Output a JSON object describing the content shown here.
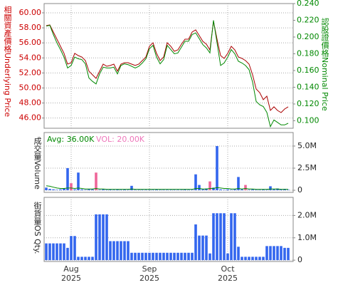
{
  "chart_data": [
    {
      "type": "line",
      "ylabel": "相關資產價格Underlying Price",
      "ylabel_color": "#cc0000",
      "y2label": "認股證價格Nominal Price",
      "y2label_color": "#008800",
      "xlim": [
        0,
        68
      ],
      "ylim": [
        44.64,
        61.23
      ],
      "yticks": [
        {
          "value": 46,
          "label": "46.00"
        },
        {
          "value": 48,
          "label": "48.00"
        },
        {
          "value": 50,
          "label": "50.00"
        },
        {
          "value": 52,
          "label": "52.00"
        },
        {
          "value": 54,
          "label": "54.00"
        },
        {
          "value": 56,
          "label": "56.00"
        },
        {
          "value": 58,
          "label": "58.00"
        },
        {
          "value": 60,
          "label": "60.00"
        }
      ],
      "y2lim": [
        0.091,
        0.24
      ],
      "y2ticks": [
        {
          "value": 0.1,
          "label": "0.100"
        },
        {
          "value": 0.12,
          "label": "0.120"
        },
        {
          "value": 0.14,
          "label": "0.140"
        },
        {
          "value": 0.16,
          "label": "0.160"
        },
        {
          "value": 0.18,
          "label": "0.180"
        },
        {
          "value": 0.2,
          "label": "0.200"
        },
        {
          "value": 0.22,
          "label": "0.220"
        },
        {
          "value": 0.24,
          "label": "0.240"
        }
      ],
      "grid": true,
      "series": [
        {
          "color": "#aa0000",
          "values": [
            58.29,
            58.39,
            57.44,
            56.49,
            55.54,
            54.6,
            53.17,
            53.36,
            54.6,
            54.31,
            54.12,
            53.65,
            52.23,
            51.75,
            51.28,
            52.23,
            53.17,
            52.89,
            52.99,
            53.17,
            52.23,
            53.17,
            53.36,
            53.36,
            53.17,
            52.99,
            53.17,
            53.65,
            54.12,
            55.54,
            56.02,
            54.6,
            53.65,
            54.12,
            56.02,
            55.54,
            54.88,
            55.07,
            55.83,
            56.49,
            56.49,
            57.44,
            57.73,
            56.97,
            56.21,
            55.83,
            55.07,
            58.86,
            56.49,
            54.31,
            53.93,
            54.6,
            55.54,
            55.07,
            54.12,
            53.93,
            53.65,
            53.17,
            51.75,
            49.86,
            49.38,
            48.44,
            48.91,
            47.01,
            47.49,
            47.01,
            46.73,
            47.2,
            47.49
          ]
        },
        {
          "color": "#008800",
          "axis": "y2",
          "values": [
            0.213,
            0.214,
            0.203,
            0.193,
            0.185,
            0.176,
            0.163,
            0.166,
            0.176,
            0.174,
            0.173,
            0.168,
            0.151,
            0.147,
            0.144,
            0.156,
            0.164,
            0.163,
            0.163,
            0.164,
            0.156,
            0.166,
            0.168,
            0.167,
            0.165,
            0.163,
            0.165,
            0.169,
            0.174,
            0.186,
            0.19,
            0.176,
            0.168,
            0.173,
            0.19,
            0.185,
            0.18,
            0.181,
            0.188,
            0.195,
            0.195,
            0.203,
            0.205,
            0.198,
            0.191,
            0.187,
            0.181,
            0.22,
            0.193,
            0.166,
            0.169,
            0.176,
            0.185,
            0.18,
            0.171,
            0.169,
            0.166,
            0.161,
            0.146,
            0.123,
            0.119,
            0.117,
            0.11,
            0.093,
            0.101,
            0.098,
            0.095,
            0.095,
            0.097
          ]
        }
      ]
    },
    {
      "type": "bar",
      "ylabel": "成交量Volume",
      "xlim": [
        0,
        68
      ],
      "ylim": [
        -0.24,
        6.53
      ],
      "yticks": [
        0,
        {
          "value": 2.5,
          "label": "2.5M"
        },
        {
          "value": 5,
          "label": "5.0M"
        }
      ],
      "grid": true,
      "color": "#3366ee",
      "alt_color": "#ee6699",
      "alt_indices": [
        7,
        14,
        46,
        56
      ],
      "values": [
        0.3,
        0.15,
        0.1,
        0.05,
        0.1,
        0.2,
        2.5,
        0.8,
        0.1,
        2.0,
        0.1,
        0.05,
        0.1,
        0.1,
        2.0,
        0.05,
        0.1,
        0.05,
        0.1,
        0.05,
        0.1,
        0.05,
        0.1,
        0.05,
        0.5,
        0.05,
        0.05,
        0.05,
        0.05,
        0.05,
        0.05,
        0.1,
        0.05,
        0.05,
        0.05,
        0.05,
        0.05,
        0.05,
        0.05,
        0.1,
        0.05,
        0.05,
        1.8,
        0.6,
        0.1,
        0.2,
        1.0,
        0.3,
        5.0,
        0.1,
        0.05,
        0.1,
        0.05,
        0.1,
        1.5,
        0.1,
        0.6,
        0.05,
        0.1,
        0.05,
        0.05,
        0.1,
        0.05,
        0.45,
        0.1,
        0.2,
        0.1,
        0.15,
        0.05
      ],
      "line": {
        "color": "#008800",
        "values": [
          0.5,
          0.45,
          0.35,
          0.25,
          0.2,
          0.2,
          0.25,
          0.25,
          0.2,
          0.25,
          0.2,
          0.15,
          0.15,
          0.15,
          0.2,
          0.15,
          0.15,
          0.1,
          0.1,
          0.1,
          0.1,
          0.1,
          0.1,
          0.1,
          0.15,
          0.1,
          0.1,
          0.1,
          0.1,
          0.1,
          0.1,
          0.1,
          0.1,
          0.1,
          0.1,
          0.1,
          0.1,
          0.1,
          0.1,
          0.1,
          0.1,
          0.1,
          0.2,
          0.2,
          0.15,
          0.15,
          0.2,
          0.2,
          0.3,
          0.25,
          0.2,
          0.2,
          0.15,
          0.15,
          0.2,
          0.15,
          0.2,
          0.15,
          0.15,
          0.1,
          0.1,
          0.1,
          0.1,
          0.15,
          0.15,
          0.15,
          0.1,
          0.1,
          0.1
        ]
      },
      "annotations": [
        {
          "text": "Avg: 36.00K",
          "color": "#008800"
        },
        {
          "text": "VOL: 20.00K",
          "color": "#ee77bb"
        }
      ]
    },
    {
      "type": "bar",
      "ylabel": "街貨量OS Qty.",
      "xlim": [
        0,
        68
      ],
      "xticks": [
        {
          "value": 7,
          "label": "Aug 2025"
        },
        {
          "value": 29,
          "label": "Sep 2025"
        },
        {
          "value": 51,
          "label": "Oct 2025"
        }
      ],
      "ylim": [
        -0.06,
        2.81
      ],
      "yticks": [
        0,
        {
          "value": 1,
          "label": "1.0M"
        },
        {
          "value": 2,
          "label": "2.0M"
        }
      ],
      "grid": true,
      "color": "#3366ee",
      "values": [
        0.75,
        0.75,
        0.75,
        0.75,
        0.75,
        0.75,
        0.55,
        1.08,
        1.08,
        0.15,
        0.15,
        0.15,
        0.15,
        0.15,
        2.05,
        2.05,
        2.05,
        2.05,
        0.85,
        0.85,
        0.85,
        0.85,
        0.85,
        0.85,
        0.33,
        0.33,
        0.33,
        0.33,
        0.33,
        0.33,
        0.33,
        0.33,
        0.33,
        0.33,
        0.33,
        0.33,
        0.33,
        0.33,
        0.33,
        0.33,
        0.33,
        0.33,
        1.6,
        1.1,
        1.1,
        1.1,
        0.3,
        2.1,
        2.1,
        2.1,
        2.1,
        0.3,
        2.1,
        2.1,
        0.6,
        0.15,
        0.15,
        0.15,
        0.15,
        0.15,
        0.15,
        0.15,
        0.63,
        0.63,
        0.63,
        0.63,
        0.63,
        0.55,
        0.55
      ]
    }
  ]
}
